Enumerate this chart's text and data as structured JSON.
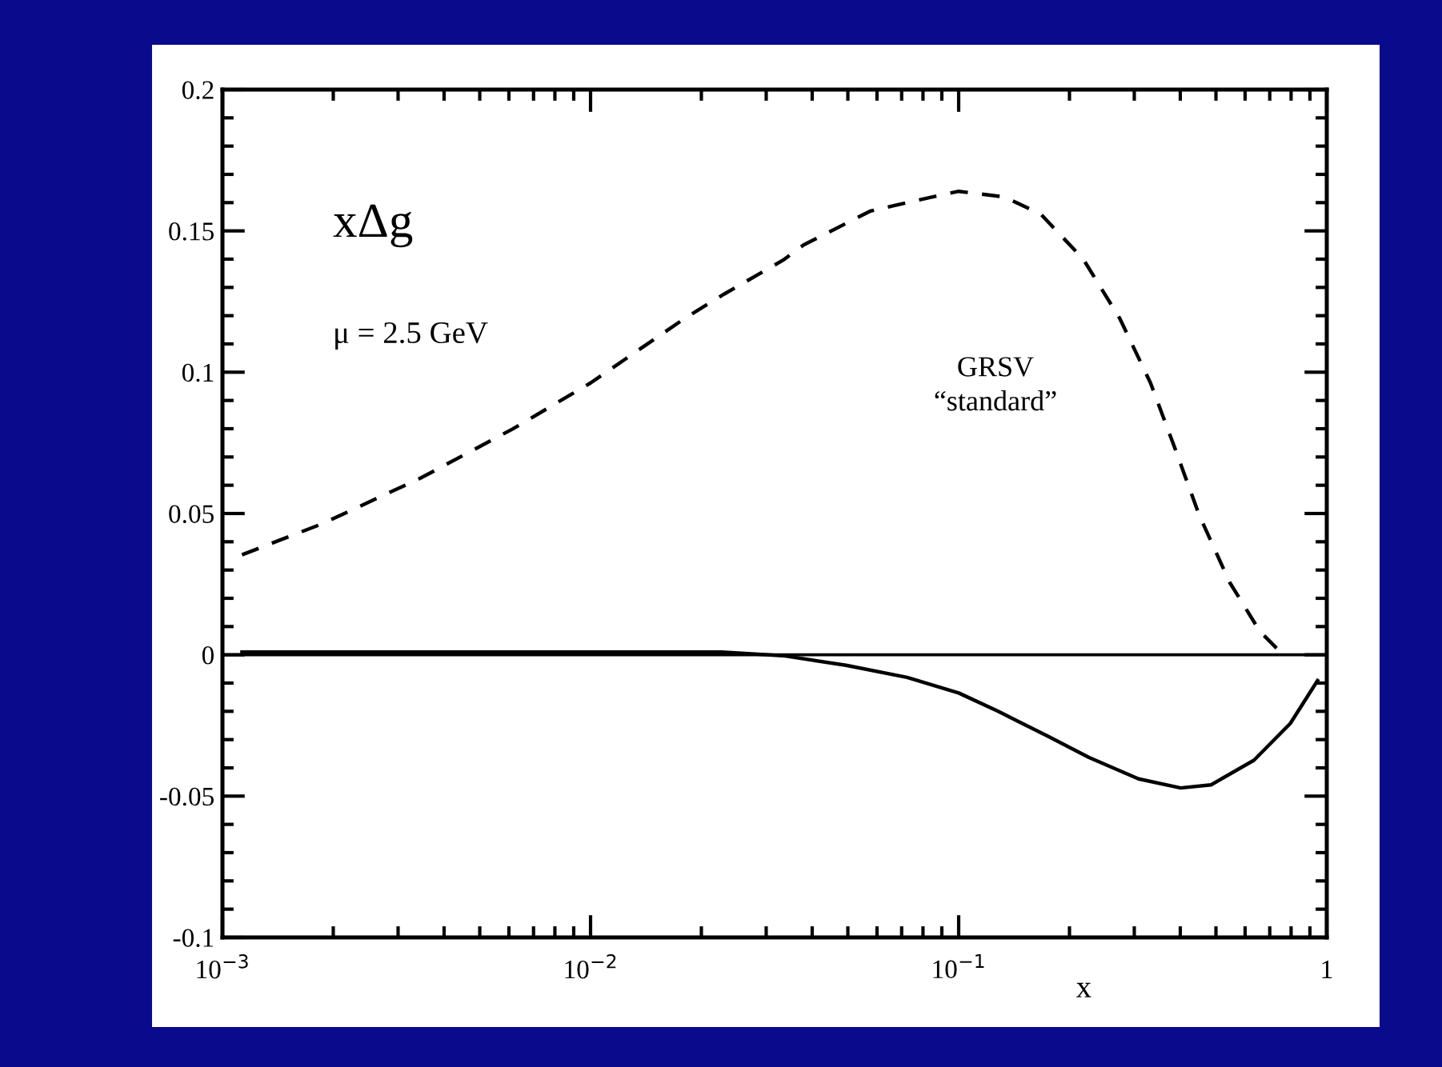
{
  "chart_data": {
    "type": "line",
    "xlabel": "x",
    "log": "x",
    "grid": false,
    "legend": false,
    "xlim": [
      0.001,
      1
    ],
    "xticks": [
      {
        "value": 0.001,
        "label": "10$^{−3}$"
      },
      {
        "value": 0.01,
        "label": "10$^{−2}$"
      },
      {
        "value": 0.1,
        "label": "10$^{−1}$"
      },
      1
    ],
    "ylim": [
      -0.1,
      0.2
    ],
    "yticks": [
      -0.1,
      -0.05,
      0,
      0.05,
      0.1,
      0.15,
      0.2
    ],
    "ref_lines": [
      {
        "axis": "y",
        "value": 0,
        "color": "#000000",
        "line_style": "solid"
      }
    ],
    "annotations": [
      "xΔg",
      "μ = 2.5 GeV",
      "GRSV\n“standard”"
    ],
    "series": [
      {
        "color": "#000000",
        "line_style": "dashed",
        "x": [
          0.00113,
          0.00186,
          0.00345,
          0.00614,
          0.01,
          0.018,
          0.0231,
          0.0333,
          0.0379,
          0.0575,
          0.0782,
          0.1,
          0.133,
          0.167,
          0.218,
          0.274,
          0.332,
          0.386,
          0.45,
          0.545,
          0.658,
          0.752
        ],
        "values": [
          0.0354,
          0.0463,
          0.0625,
          0.0799,
          0.0962,
          0.119,
          0.1277,
          0.1396,
          0.145,
          0.157,
          0.161,
          0.164,
          0.162,
          0.156,
          0.14,
          0.119,
          0.0962,
          0.0734,
          0.0495,
          0.0256,
          0.0083,
          0.0007
        ]
      },
      {
        "color": "#000000",
        "line_style": "solid",
        "x": [
          0.00113,
          0.0227,
          0.0338,
          0.0494,
          0.0724,
          0.1,
          0.128,
          0.174,
          0.226,
          0.308,
          0.401,
          0.485,
          0.634,
          0.796,
          0.944
        ],
        "values": [
          0.001,
          0.001,
          -0.0004,
          -0.0037,
          -0.008,
          -0.0135,
          -0.02,
          -0.0287,
          -0.0363,
          -0.0439,
          -0.0471,
          -0.046,
          -0.0373,
          -0.0243,
          -0.0091
        ]
      }
    ]
  }
}
